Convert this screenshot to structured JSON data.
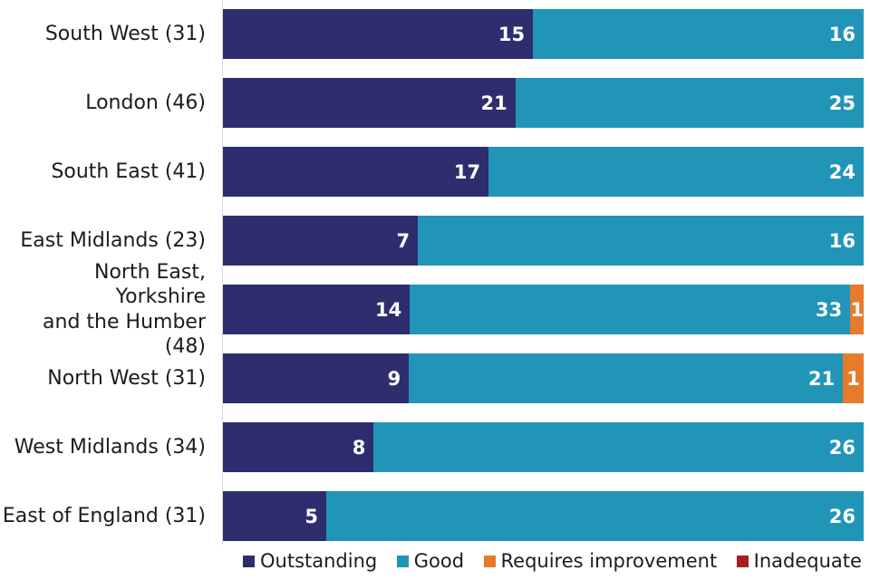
{
  "chart_data": {
    "type": "bar",
    "orientation": "horizontal",
    "stacked": true,
    "normalization": "each row scaled to 100% of its total",
    "grid": false,
    "axis_line_color": "#d9d9d9",
    "text_color": "#1c1c1c",
    "value_label_color": "#ffffff",
    "legend_position": "bottom",
    "small_segment_center_threshold_pct": 6,
    "categories": [
      "South West (31)",
      "London (46)",
      "South East (41)",
      "East Midlands (23)",
      "North East, Yorkshire\nand the Humber (48)",
      "North West (31)",
      "West Midlands (34)",
      "East of England (31)"
    ],
    "series": [
      {
        "name": "Outstanding",
        "color": "#2e2d6e",
        "values": [
          15,
          21,
          17,
          7,
          14,
          9,
          8,
          5
        ]
      },
      {
        "name": "Good",
        "color": "#2195b7",
        "values": [
          16,
          25,
          24,
          16,
          33,
          21,
          26,
          26
        ]
      },
      {
        "name": "Requires improvement",
        "color": "#e87a2c",
        "values": [
          0,
          0,
          0,
          0,
          1,
          1,
          0,
          0
        ]
      },
      {
        "name": "Inadequate",
        "color": "#a91e23",
        "values": [
          0,
          0,
          0,
          0,
          0,
          0,
          0,
          0
        ]
      }
    ],
    "legend": [
      {
        "label": "Outstanding",
        "color": "#2e2d6e"
      },
      {
        "label": "Good",
        "color": "#2195b7"
      },
      {
        "label": "Requires improvement",
        "color": "#e87a2c"
      },
      {
        "label": "Inadequate",
        "color": "#a91e23"
      }
    ]
  }
}
